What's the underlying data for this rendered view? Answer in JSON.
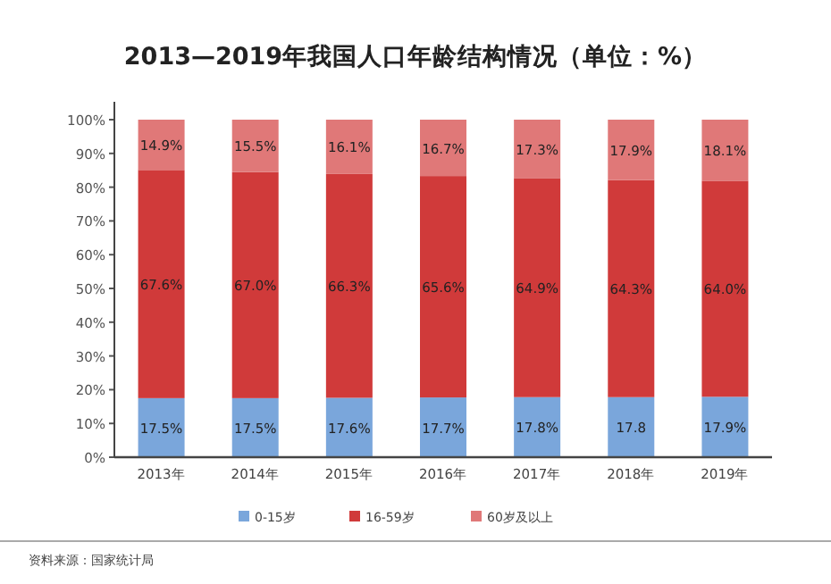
{
  "chart_data": {
    "type": "bar",
    "stacked": true,
    "title": "2013—2019年我国人口年龄结构情况（单位：%）",
    "categories": [
      "2013年",
      "2014年",
      "2015年",
      "2016年",
      "2017年",
      "2018年",
      "2019年"
    ],
    "ylim": [
      0,
      100
    ],
    "yticks": [
      {
        "value": 0,
        "label": "0%"
      },
      {
        "value": 10,
        "label": "10%"
      },
      {
        "value": 20,
        "label": "20%"
      },
      {
        "value": 30,
        "label": "30%"
      },
      {
        "value": 40,
        "label": "40%"
      },
      {
        "value": 50,
        "label": "50%"
      },
      {
        "value": 60,
        "label": "60%"
      },
      {
        "value": 70,
        "label": "70%"
      },
      {
        "value": 80,
        "label": "80%"
      },
      {
        "value": 90,
        "label": "90%"
      },
      {
        "value": 100,
        "label": "100%"
      }
    ],
    "series": [
      {
        "name": "0-15岁",
        "color": "#7aa6db",
        "values": [
          17.5,
          17.5,
          17.6,
          17.7,
          17.8,
          17.8,
          17.9
        ],
        "value_labels": [
          "17.5%",
          "17.5%",
          "17.6%",
          "17.7%",
          "17.8%",
          "17.8",
          "17.9%"
        ]
      },
      {
        "name": "16-59岁",
        "color": "#d03a3a",
        "values": [
          67.6,
          67.0,
          66.3,
          65.6,
          64.9,
          64.3,
          64.0
        ],
        "value_labels": [
          "67.6%",
          "67.0%",
          "66.3%",
          "65.6%",
          "64.9%",
          "64.3%",
          "64.0%"
        ]
      },
      {
        "name": "60岁及以上",
        "color": "#e07878",
        "values": [
          14.9,
          15.5,
          16.1,
          16.7,
          17.3,
          17.9,
          18.1
        ],
        "value_labels": [
          "14.9%",
          "15.5%",
          "16.1%",
          "16.7%",
          "17.3%",
          "17.9%",
          "18.1%"
        ]
      }
    ],
    "grid": false,
    "legend": "bottom",
    "annotations": [
      "资料来源：国家统计局"
    ]
  }
}
